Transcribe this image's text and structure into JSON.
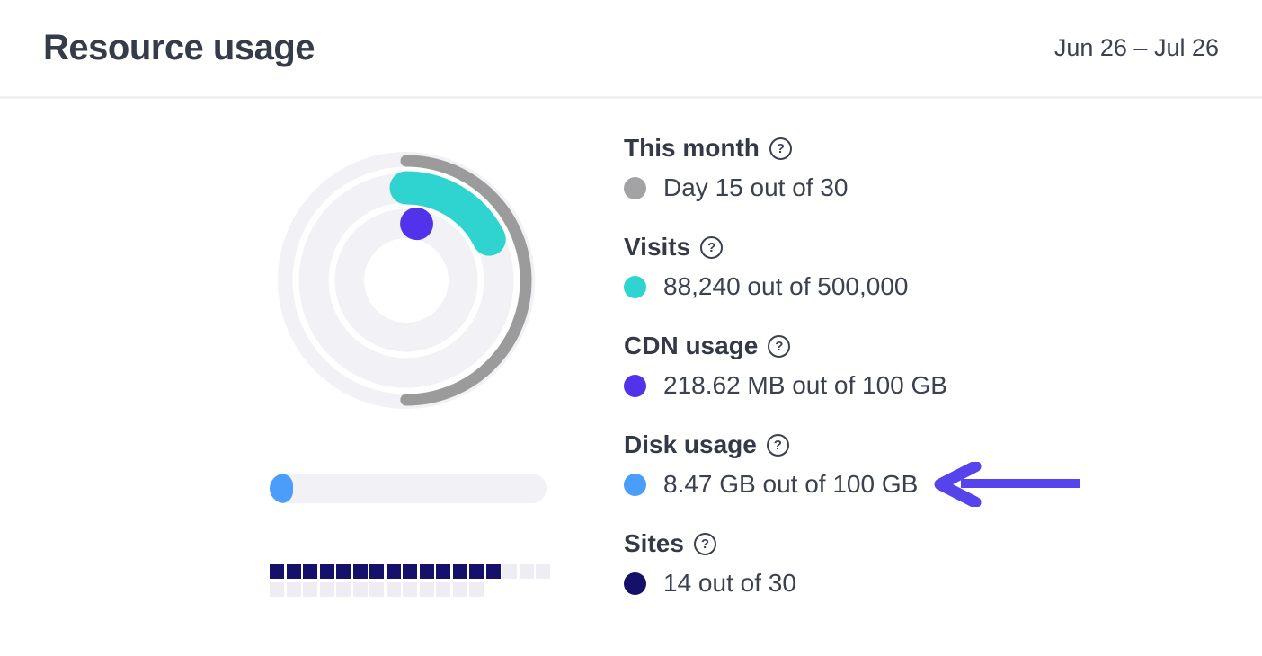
{
  "header": {
    "title": "Resource usage",
    "date_range": "Jun 26 – Jul 26"
  },
  "icons": {
    "help": "?"
  },
  "metrics": [
    {
      "id": "this-month",
      "label": "This month",
      "value": "Day 15 out of 30",
      "color": "#a3a3a6"
    },
    {
      "id": "visits",
      "label": "Visits",
      "value": "88,240 out of 500,000",
      "color": "#2fd4d1"
    },
    {
      "id": "cdn-usage",
      "label": "CDN usage",
      "value": "218.62 MB out of 100 GB",
      "color": "#5233eb"
    },
    {
      "id": "disk-usage",
      "label": "Disk usage",
      "value": "8.47 GB out of 100 GB",
      "color": "#4a9df8",
      "annotated": true
    },
    {
      "id": "sites",
      "label": "Sites",
      "value": "14 out of 30",
      "color": "#15116b"
    }
  ],
  "chart_data": {
    "type": "ring-gauge",
    "title": "Resource usage",
    "period": "Jun 26 – Jul 26",
    "rings": [
      {
        "name": "This month",
        "value": 15,
        "max": 30,
        "pct": 50.0,
        "color": "#9b9b9b",
        "radius": 133,
        "stroke": 13,
        "start_deg": 0
      },
      {
        "name": "Visits",
        "value": 88240,
        "max": 500000,
        "pct": 17.65,
        "color": "#2fd4d1",
        "radius": 103,
        "stroke": 37,
        "start_deg": 0
      },
      {
        "name": "CDN usage",
        "value_label": "218.62 MB",
        "max_label": "100 GB",
        "pct": 0.21,
        "color": "#5233eb",
        "radius": 64,
        "stroke": 36,
        "start_deg": 10
      }
    ],
    "background": {
      "disc_color": "#f1f1f6",
      "separator_color": "#ffffff"
    }
  },
  "disk_bar": {
    "pct": 8.47,
    "track_color": "#f1f1f6",
    "fill_color": "#4a9df8"
  },
  "sites_grid": {
    "total": 30,
    "filled": 14,
    "filled_color": "#15116b",
    "empty_color": "#ededf3"
  },
  "annotation": {
    "arrow_color": "#5743eb",
    "points_at": "disk-usage-value"
  }
}
